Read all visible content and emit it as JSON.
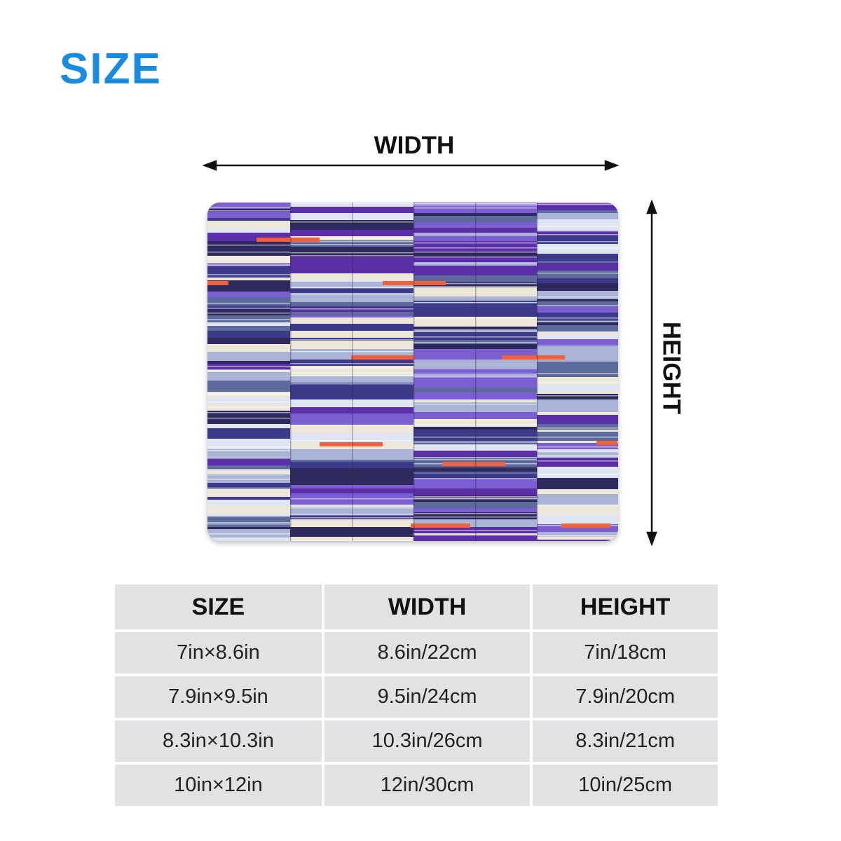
{
  "page_title": "SIZE",
  "diagram": {
    "width_label": "WIDTH",
    "height_label": "HEIGHT"
  },
  "size_table": {
    "headers": [
      "SIZE",
      "WIDTH",
      "HEIGHT"
    ],
    "rows": [
      [
        "7in×8.6in",
        "8.6in/22cm",
        "7in/18cm"
      ],
      [
        "7.9in×9.5in",
        "9.5in/24cm",
        "7.9in/20cm"
      ],
      [
        "8.3in×10.3in",
        "10.3in/26cm",
        "8.3in/21cm"
      ],
      [
        "10in×12in",
        "12in/30cm",
        "10in/25cm"
      ]
    ]
  },
  "colors": {
    "title": "#1a8ce0",
    "table_cell": "#e2e2e5",
    "pad_purple": "#5a2fa8",
    "pad_navy": "#2e2a5e",
    "pad_slate": "#5c6a9c",
    "pad_cream": "#ece7d8",
    "pad_orange": "#f0603a"
  }
}
